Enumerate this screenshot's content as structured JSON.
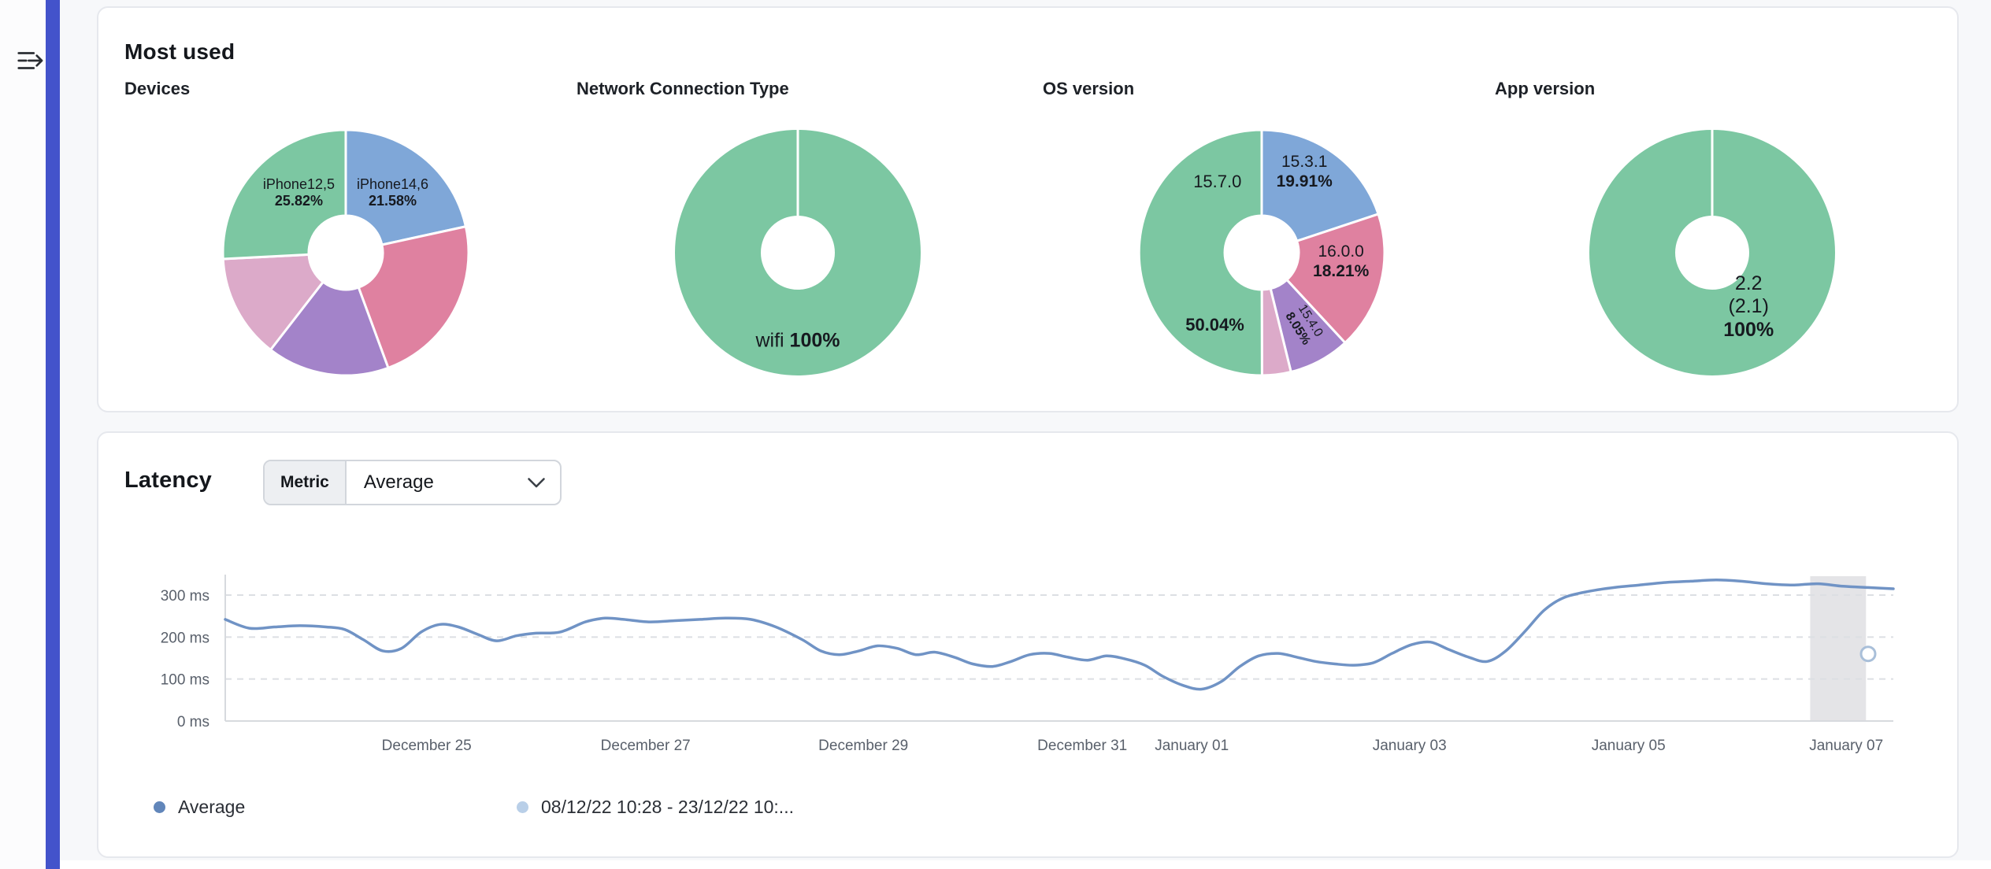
{
  "page": {
    "background": "#f7f8fa",
    "accent_bar_color": "#4353cb"
  },
  "icons": {
    "sidebar_expand": "sidebar-expand-icon",
    "metric_chevron": "chevron-down-icon"
  },
  "most_used": {
    "title": "Most used"
  },
  "latency": {
    "title": "Latency",
    "metric_label": "Metric",
    "metric_value": "Average"
  },
  "chart_data": [
    {
      "id": "devices",
      "type": "pie",
      "title": "Devices",
      "donut": true,
      "segments": [
        {
          "name": "iPhone14,6",
          "value": 21.58,
          "color": "#7fa7d8",
          "labels": [
            {
              "rows": [
                [
                  {
                    "t": "iPhone14,6"
                  }
                ],
                [
                  {
                    "t": "21.58%",
                    "b": true
                  }
                ]
              ],
              "angle": 38,
              "radius": 0.62,
              "size": 18
            }
          ]
        },
        {
          "name": "",
          "value": 22.8,
          "color": "#df81a0",
          "labels": []
        },
        {
          "name": "",
          "value": 16.1,
          "color": "#a383c9",
          "labels": []
        },
        {
          "name": "",
          "value": 13.7,
          "color": "#dcaac9",
          "labels": []
        },
        {
          "name": "iPhone12,5",
          "value": 25.82,
          "color": "#7cc7a2",
          "labels": [
            {
              "rows": [
                [
                  {
                    "t": "iPhone12,5"
                  }
                ],
                [
                  {
                    "t": "25.82%",
                    "b": true
                  }
                ]
              ],
              "angle": 322,
              "radius": 0.62,
              "size": 18
            }
          ]
        }
      ]
    },
    {
      "id": "network",
      "type": "pie",
      "title": "Network Connection Type",
      "donut": true,
      "segments": [
        {
          "name": "wifi",
          "value": 100,
          "color": "#7cc7a2",
          "labels": [
            {
              "rows": [
                [
                  {
                    "t": "wifi "
                  },
                  {
                    "t": "100%",
                    "b": true
                  }
                ]
              ],
              "angle": 180,
              "radius": 0.72,
              "size": 25
            }
          ]
        }
      ]
    },
    {
      "id": "os_version",
      "type": "pie",
      "title": "OS version",
      "donut": true,
      "segments": [
        {
          "name": "15.3.1",
          "value": 19.91,
          "color": "#7fa7d8",
          "labels": [
            {
              "rows": [
                [
                  {
                    "t": "15.3.1"
                  }
                ],
                [
                  {
                    "t": "19.91%",
                    "b": true
                  }
                ]
              ],
              "angle": 28,
              "radius": 0.74,
              "size": 21
            }
          ]
        },
        {
          "name": "16.0.0",
          "value": 18.21,
          "color": "#df81a0",
          "labels": [
            {
              "rows": [
                [
                  {
                    "t": "16.0.0"
                  }
                ],
                [
                  {
                    "t": "18.21%",
                    "b": true
                  }
                ]
              ],
              "angle": 97,
              "radius": 0.65,
              "size": 21
            }
          ]
        },
        {
          "name": "15.4.0",
          "value": 8.05,
          "color": "#a383c9",
          "labels": [
            {
              "rows": [
                [
                  {
                    "t": "15.4.0"
                  }
                ],
                [
                  {
                    "t": "8.05%",
                    "b": true
                  }
                ]
              ],
              "angle": 150,
              "radius": 0.68,
              "size": 16,
              "rot": 58
            }
          ]
        },
        {
          "name": "",
          "value": 3.79,
          "color": "#dcaac9",
          "labels": []
        },
        {
          "name": "15.7.0",
          "value": 50.04,
          "color": "#7cc7a2",
          "labels": [
            {
              "rows": [
                [
                  {
                    "t": "15.7.0"
                  }
                ]
              ],
              "angle": 328,
              "radius": 0.68,
              "size": 22
            },
            {
              "rows": [
                [
                  {
                    "t": "50.04%",
                    "b": true
                  }
                ]
              ],
              "angle": 213,
              "radius": 0.7,
              "size": 22
            }
          ]
        }
      ]
    },
    {
      "id": "app_version",
      "type": "pie",
      "title": "App version",
      "donut": true,
      "segments": [
        {
          "name": "2.2 (2.1)",
          "value": 100,
          "color": "#7cc7a2",
          "labels": [
            {
              "rows": [
                [
                  {
                    "t": "2.2"
                  }
                ],
                [
                  {
                    "t": "(2.1)"
                  }
                ],
                [
                  {
                    "t": "100%",
                    "b": true
                  }
                ]
              ],
              "angle": 146,
              "radius": 0.53,
              "size": 25
            }
          ]
        }
      ]
    },
    {
      "id": "latency",
      "type": "line",
      "title": "Latency",
      "ylabel": "ms",
      "ylim": [
        0,
        345
      ],
      "yticks": [
        {
          "ms": 0,
          "label": "0 ms"
        },
        {
          "ms": 100,
          "label": "100 ms"
        },
        {
          "ms": 200,
          "label": "200 ms"
        },
        {
          "ms": 300,
          "label": "300 ms"
        }
      ],
      "x_domain_days": [
        0,
        15.24
      ],
      "xticks": [
        {
          "day": 1.84,
          "label": "December 25"
        },
        {
          "day": 3.84,
          "label": "December 27"
        },
        {
          "day": 5.83,
          "label": "December 29"
        },
        {
          "day": 7.83,
          "label": "December 31"
        },
        {
          "day": 8.83,
          "label": "January 01"
        },
        {
          "day": 10.82,
          "label": "January 03"
        },
        {
          "day": 12.82,
          "label": "January 05"
        },
        {
          "day": 14.81,
          "label": "January 07"
        }
      ],
      "grid": "dashed-horizontal",
      "series": [
        {
          "name": "Average",
          "color": "#7093c5",
          "points": [
            [
              0,
              242
            ],
            [
              0.22,
              221
            ],
            [
              0.45,
              224
            ],
            [
              0.68,
              227
            ],
            [
              0.92,
              224
            ],
            [
              1.09,
              218
            ],
            [
              1.26,
              194
            ],
            [
              1.44,
              167
            ],
            [
              1.61,
              173
            ],
            [
              1.79,
              212
            ],
            [
              1.96,
              230
            ],
            [
              2.13,
              224
            ],
            [
              2.31,
              206
            ],
            [
              2.48,
              191
            ],
            [
              2.66,
              203
            ],
            [
              2.83,
              209
            ],
            [
              3.06,
              212
            ],
            [
              3.29,
              236
            ],
            [
              3.47,
              245
            ],
            [
              3.64,
              242
            ],
            [
              3.87,
              236
            ],
            [
              4.11,
              239
            ],
            [
              4.34,
              242
            ],
            [
              4.57,
              245
            ],
            [
              4.8,
              242
            ],
            [
              5.03,
              224
            ],
            [
              5.27,
              194
            ],
            [
              5.44,
              167
            ],
            [
              5.61,
              158
            ],
            [
              5.79,
              167
            ],
            [
              5.96,
              179
            ],
            [
              6.14,
              173
            ],
            [
              6.31,
              158
            ],
            [
              6.48,
              164
            ],
            [
              6.66,
              152
            ],
            [
              6.83,
              136
            ],
            [
              7.01,
              130
            ],
            [
              7.18,
              142
            ],
            [
              7.35,
              158
            ],
            [
              7.53,
              161
            ],
            [
              7.7,
              152
            ],
            [
              7.88,
              145
            ],
            [
              8.05,
              155
            ],
            [
              8.22,
              148
            ],
            [
              8.4,
              133
            ],
            [
              8.57,
              106
            ],
            [
              8.75,
              85
            ],
            [
              8.92,
              76
            ],
            [
              9.1,
              94
            ],
            [
              9.27,
              130
            ],
            [
              9.44,
              155
            ],
            [
              9.62,
              161
            ],
            [
              9.79,
              152
            ],
            [
              9.96,
              142
            ],
            [
              10.14,
              136
            ],
            [
              10.31,
              133
            ],
            [
              10.49,
              139
            ],
            [
              10.66,
              161
            ],
            [
              10.84,
              182
            ],
            [
              11.01,
              188
            ],
            [
              11.18,
              170
            ],
            [
              11.36,
              152
            ],
            [
              11.53,
              142
            ],
            [
              11.7,
              167
            ],
            [
              11.88,
              215
            ],
            [
              12.05,
              264
            ],
            [
              12.23,
              294
            ],
            [
              12.46,
              309
            ],
            [
              12.69,
              318
            ],
            [
              12.92,
              324
            ],
            [
              13.16,
              330
            ],
            [
              13.39,
              333
            ],
            [
              13.62,
              336
            ],
            [
              13.85,
              333
            ],
            [
              14.08,
              327
            ],
            [
              14.32,
              324
            ],
            [
              14.55,
              327
            ],
            [
              14.78,
              321
            ],
            [
              15.01,
              318
            ],
            [
              15.24,
              315
            ]
          ]
        }
      ],
      "selection_band": {
        "day_start": 14.48,
        "day_end": 14.99,
        "color": "#e4e4e7"
      },
      "end_marker": {
        "day": 15.01,
        "ms": 160,
        "stroke": "#a9bfd9"
      },
      "legend": [
        {
          "label": "Average",
          "color": "#6186ba"
        },
        {
          "label": "08/12/22 10:28 - 23/12/22 10:...",
          "color": "#b9cfe8"
        }
      ]
    }
  ]
}
